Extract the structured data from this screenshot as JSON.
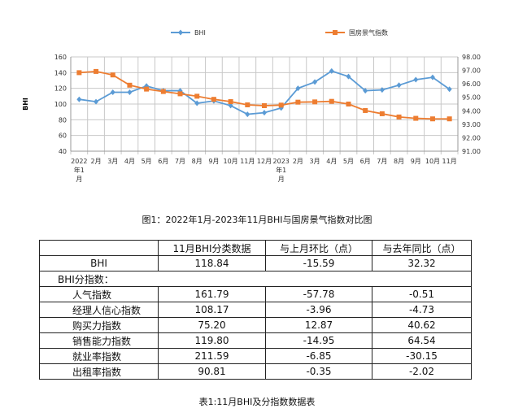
{
  "chart_data": {
    "type": "line",
    "categories": [
      "2022年1月",
      "2月",
      "3月",
      "4月",
      "5月",
      "6月",
      "7月",
      "8月",
      "9月",
      "10月",
      "11月",
      "12月",
      "2023年1月",
      "2月",
      "3月",
      "4月",
      "5月",
      "6月",
      "7月",
      "8月",
      "9月",
      "10月",
      "11月"
    ],
    "category_labels": [
      [
        "2022",
        "年1",
        "月"
      ],
      [
        "2月"
      ],
      [
        "3月"
      ],
      [
        "4月"
      ],
      [
        "5月"
      ],
      [
        "6月"
      ],
      [
        "7月"
      ],
      [
        "8月"
      ],
      [
        "9月"
      ],
      [
        "10月"
      ],
      [
        "11月"
      ],
      [
        "12月"
      ],
      [
        "2023",
        "年1",
        "月"
      ],
      [
        "2月"
      ],
      [
        "3月"
      ],
      [
        "4月"
      ],
      [
        "5月"
      ],
      [
        "6月"
      ],
      [
        "7月"
      ],
      [
        "8月"
      ],
      [
        "9月"
      ],
      [
        "10月"
      ],
      [
        "11月"
      ]
    ],
    "series": [
      {
        "name": "BHI",
        "axis": "left",
        "color": "#5b9bd5",
        "marker": "diamond",
        "values": [
          106,
          103,
          115,
          115,
          123,
          117,
          117,
          101,
          104,
          98,
          87,
          89,
          95,
          120,
          128,
          142,
          135,
          117,
          118,
          124,
          131,
          134,
          118.84
        ]
      },
      {
        "name": "国房景气指数",
        "axis": "right",
        "color": "#ed7d31",
        "marker": "square",
        "values": [
          96.83,
          96.92,
          96.66,
          95.9,
          95.61,
          95.43,
          95.26,
          95.08,
          94.85,
          94.68,
          94.44,
          94.38,
          94.42,
          94.64,
          94.66,
          94.7,
          94.5,
          94.02,
          93.78,
          93.54,
          93.44,
          93.4,
          93.4
        ]
      }
    ],
    "ylabel": "BHI",
    "ylim": [
      40,
      160
    ],
    "yticks": [
      "40",
      "60",
      "80",
      "100",
      "120",
      "140",
      "160"
    ],
    "y2lim": [
      91,
      98
    ],
    "y2ticks": [
      "91.00",
      "92.00",
      "93.00",
      "94.00",
      "95.00",
      "96.00",
      "97.00",
      "98.00"
    ],
    "grid": true,
    "legend": "top"
  },
  "figure_caption": "图1：2022年1月-2023年11月BHI与国房景气指数对比图",
  "table": {
    "headers": [
      "",
      "11月BHI分类数据",
      "与上月环比（点）",
      "与去年同比（点）"
    ],
    "bhi_row": [
      "BHI",
      "118.84",
      "-15.59",
      "32.32"
    ],
    "sub_title": "BHI分指数：",
    "rows": [
      [
        "人气指数",
        "161.79",
        "-57.78",
        "-0.51"
      ],
      [
        "经理人信心指数",
        "108.17",
        "-3.96",
        "-4.73"
      ],
      [
        "购买力指数",
        "75.20",
        "12.87",
        "40.62"
      ],
      [
        "销售能力指数",
        "119.80",
        "-14.95",
        "64.54"
      ],
      [
        "就业率指数",
        "211.59",
        "-6.85",
        "-30.15"
      ],
      [
        "出租率指数",
        "90.81",
        "-0.35",
        "-2.02"
      ]
    ]
  },
  "table_caption": "表1:11月BHI及分指数数据表"
}
